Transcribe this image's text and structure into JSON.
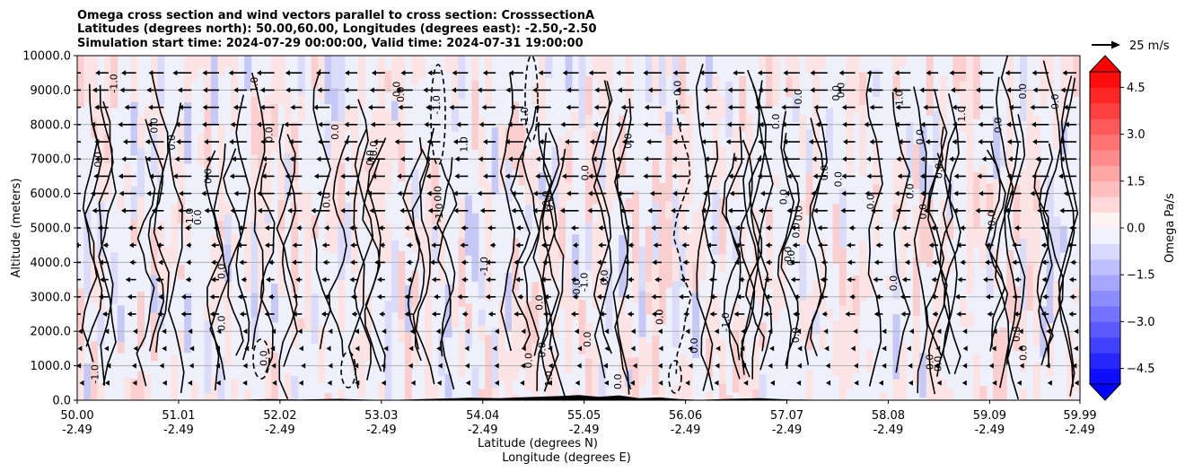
{
  "chart_data": {
    "type": "contour",
    "title_lines": [
      "Omega cross section and wind vectors parallel to cross section: CrosssectionA",
      "Latitudes (degrees north): 50.00,60.00, Longitudes (degrees east): -2.50,-2.50",
      "Simulation start time: 2024-07-29 00:00:00, Valid time: 2024-07-31 19:00:00"
    ],
    "ylabel": "Altitude (meters)",
    "xlabel_lines": [
      "Latitude (degrees N)",
      "Longitude (degrees E)"
    ],
    "ylim": [
      0,
      10000
    ],
    "yticks": [
      "0.0",
      "1000.0",
      "2000.0",
      "3000.0",
      "4000.0",
      "5000.0",
      "6000.0",
      "7000.0",
      "8000.0",
      "9000.0",
      "10000.0"
    ],
    "xlim": [
      50.0,
      59.99
    ],
    "xticks": [
      {
        "lat": "50.00",
        "lon": "-2.49"
      },
      {
        "lat": "51.01",
        "lon": "-2.49"
      },
      {
        "lat": "52.02",
        "lon": "-2.49"
      },
      {
        "lat": "53.03",
        "lon": "-2.49"
      },
      {
        "lat": "54.04",
        "lon": "-2.49"
      },
      {
        "lat": "55.05",
        "lon": "-2.49"
      },
      {
        "lat": "56.06",
        "lon": "-2.49"
      },
      {
        "lat": "57.07",
        "lon": "-2.49"
      },
      {
        "lat": "58.08",
        "lon": "-2.49"
      },
      {
        "lat": "59.09",
        "lon": "-2.49"
      },
      {
        "lat": "59.99",
        "lon": "-2.49"
      }
    ],
    "grid": "horizontal",
    "colorbar": {
      "label": "Omega Pa/s",
      "range": [
        -5,
        5
      ],
      "ticks": [
        "−4.5",
        "−3.0",
        "−1.5",
        "0.0",
        "1.5",
        "3.0",
        "4.5"
      ],
      "colormap": "bwr"
    },
    "quiver_key_label": "25 m/s",
    "contour_labels": [
      "0.0",
      "1.0",
      "-1.0"
    ],
    "wind_direction": "negative (toward lower latitude)"
  }
}
